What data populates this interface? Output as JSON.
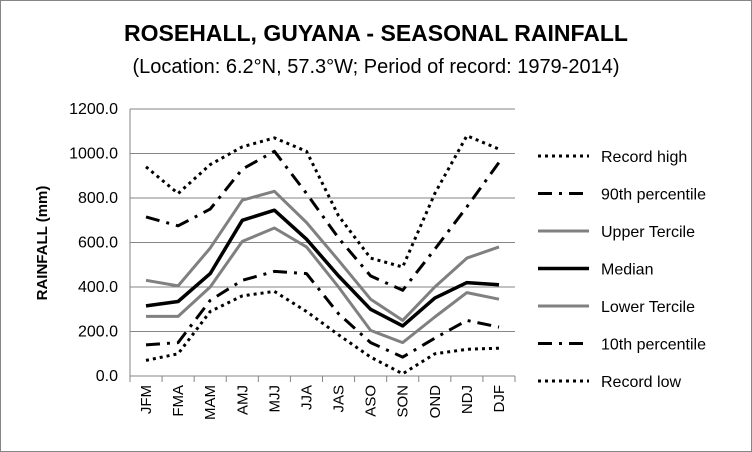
{
  "chart_data": {
    "type": "line",
    "title": "ROSEHALL, GUYANA - SEASONAL RAINFALL",
    "subtitle": "(Location: 6.2°N, 57.3°W; Period of record: 1979-2014)",
    "xlabel": "",
    "ylabel": "RAINFALL (mm)",
    "ylim": [
      0,
      1200
    ],
    "yticks": [
      "0.0",
      "200.0",
      "400.0",
      "600.0",
      "800.0",
      "1000.0",
      "1200.0"
    ],
    "ytick_values": [
      0,
      200,
      400,
      600,
      800,
      1000,
      1200
    ],
    "categories": [
      "JFM",
      "FMA",
      "MAM",
      "AMJ",
      "MJJ",
      "JJA",
      "JAS",
      "ASO",
      "SON",
      "OND",
      "NDJ",
      "DJF"
    ],
    "grid": "horizontal",
    "legend_position": "right",
    "series": [
      {
        "name": "Record high",
        "style": "dotted",
        "color": "#000000",
        "values": [
          940,
          820,
          950,
          1030,
          1070,
          1010,
          720,
          530,
          490,
          820,
          1080,
          1020
        ]
      },
      {
        "name": "90th percentile",
        "style": "dashdot",
        "color": "#000000",
        "values": [
          715,
          675,
          750,
          930,
          1010,
          820,
          620,
          450,
          385,
          570,
          760,
          960
        ]
      },
      {
        "name": "Upper Tercile",
        "style": "solid",
        "color": "#808080",
        "values": [
          430,
          405,
          575,
          790,
          830,
          690,
          520,
          345,
          250,
          400,
          530,
          580
        ]
      },
      {
        "name": "Median",
        "style": "solid",
        "color": "#000000",
        "values": [
          315,
          335,
          460,
          700,
          745,
          615,
          450,
          300,
          225,
          350,
          420,
          410
        ]
      },
      {
        "name": "Lower Tercile",
        "style": "solid",
        "color": "#808080",
        "values": [
          268,
          268,
          400,
          605,
          665,
          580,
          400,
          205,
          150,
          265,
          375,
          345
        ]
      },
      {
        "name": "10th percentile",
        "style": "dashdot",
        "color": "#000000",
        "values": [
          140,
          150,
          340,
          430,
          470,
          460,
          280,
          150,
          85,
          170,
          250,
          220
        ]
      },
      {
        "name": "Record low",
        "style": "dotted",
        "color": "#000000",
        "values": [
          70,
          100,
          290,
          360,
          380,
          290,
          185,
          85,
          10,
          100,
          120,
          125
        ]
      }
    ]
  }
}
